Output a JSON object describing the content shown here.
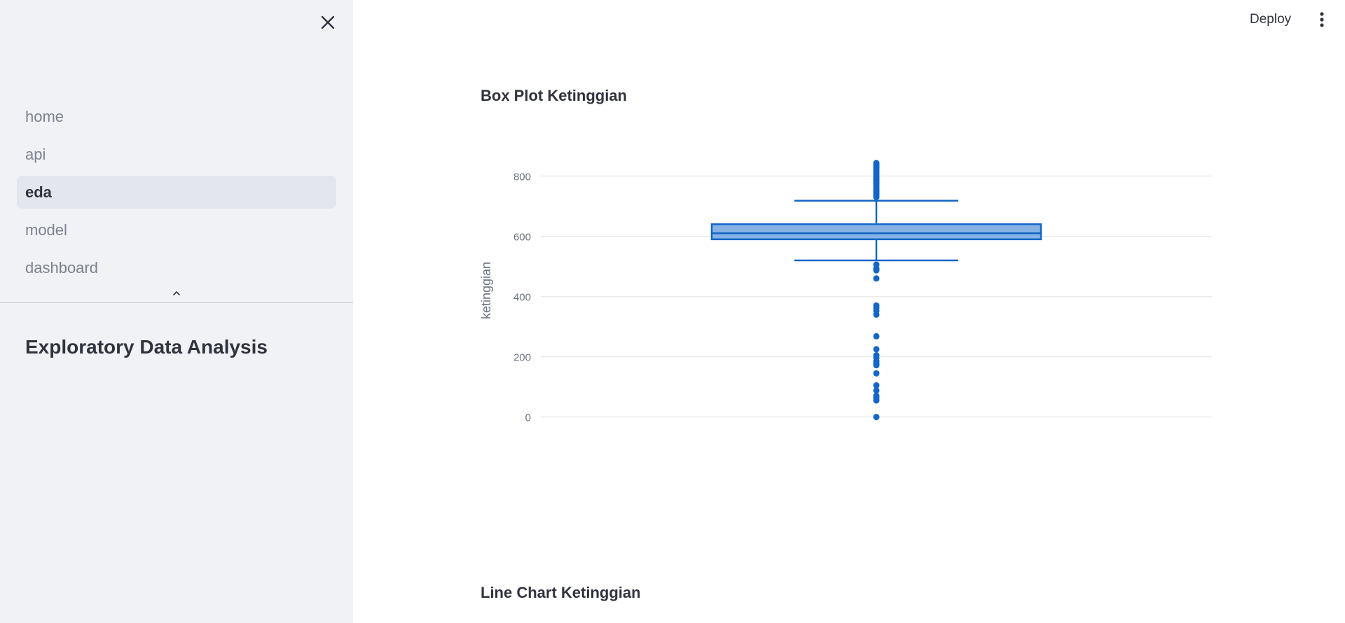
{
  "sidebar": {
    "close_icon": "close-icon",
    "nav": [
      {
        "label": "home",
        "active": false
      },
      {
        "label": "api",
        "active": false
      },
      {
        "label": "eda",
        "active": true
      },
      {
        "label": "model",
        "active": false
      },
      {
        "label": "dashboard",
        "active": false
      }
    ],
    "collapse_icon": "chevron-up-icon",
    "title": "Exploratory Data Analysis"
  },
  "header": {
    "deploy_label": "Deploy",
    "menu_icon": "vertical-dots-icon"
  },
  "main": {
    "box_title": "Box Plot Ketinggian",
    "line_title": "Line Chart Ketinggian"
  },
  "colors": {
    "accent": "#1366c7",
    "box_fill": "#86b2e6",
    "grid": "#e6e8ec",
    "tick": "#6b7280"
  },
  "chart_data": {
    "type": "box",
    "title": "Box Plot Ketinggian",
    "ylabel": "ketinggian",
    "xlabel": "",
    "ylim": [
      -10,
      850
    ],
    "yticks": [
      0,
      200,
      400,
      600,
      800
    ],
    "grid": true,
    "series": [
      {
        "q1": 590,
        "median": 610,
        "q3": 640,
        "lowerfence": 520,
        "upperfence": 718,
        "outliers": [
          843,
          838,
          833,
          828,
          822,
          816,
          810,
          804,
          798,
          792,
          786,
          780,
          774,
          768,
          762,
          756,
          750,
          745,
          740,
          735,
          730,
          506,
          493,
          487,
          460,
          370,
          362,
          352,
          340,
          268,
          225,
          205,
          196,
          185,
          177,
          172,
          145,
          105,
          88,
          70,
          63,
          55,
          0
        ]
      }
    ]
  }
}
